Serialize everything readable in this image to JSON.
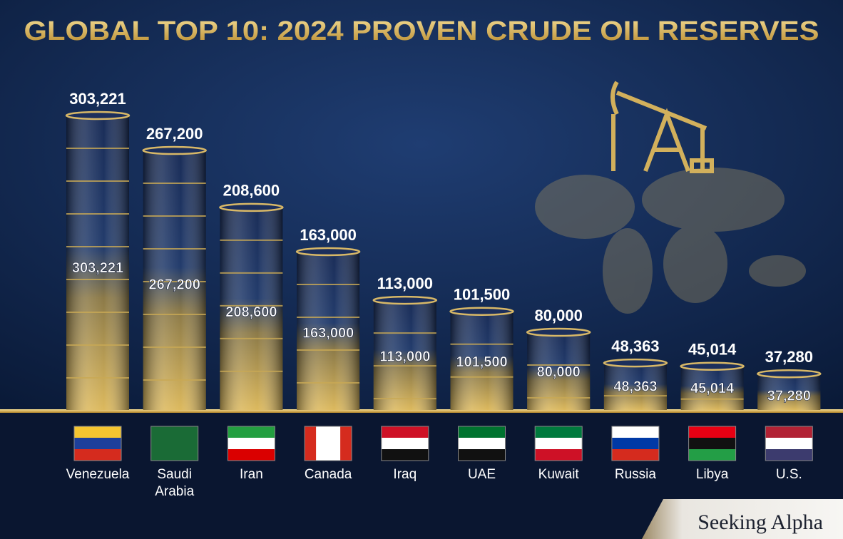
{
  "chart_data": {
    "type": "barrel",
    "title": "GLOBAL TOP 10: 2024 PROVEN CRUDE OIL RESERVES",
    "categories": [
      "Venezuela",
      "Saudi Arabia",
      "Iran",
      "Canada",
      "Iraq",
      "UAE",
      "Kuwait",
      "Russia",
      "Libya",
      "U.S."
    ],
    "values": [
      303221,
      267200,
      208600,
      163000,
      113000,
      101500,
      80000,
      48363,
      45014,
      37280
    ],
    "value_labels": [
      "303,221",
      "267,200",
      "208,600",
      "163,000",
      "113,000",
      "101,500",
      "80,000",
      "48,363",
      "45,014",
      "37,280"
    ]
  },
  "brand": "Seeking Alpha"
}
